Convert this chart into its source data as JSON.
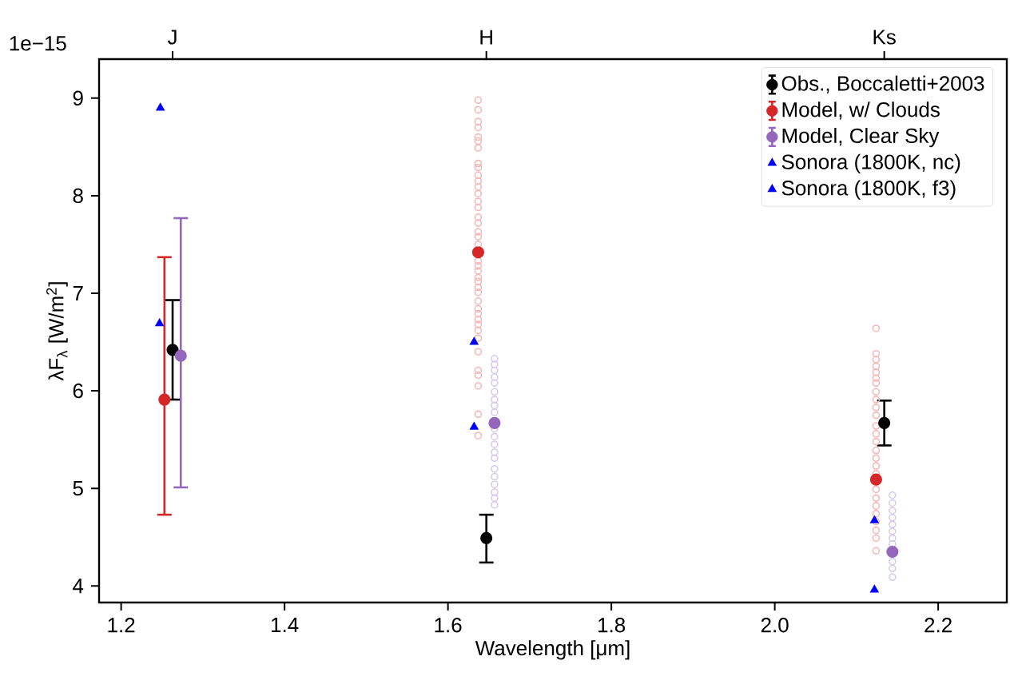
{
  "chart_data": {
    "type": "scatter",
    "xlabel": "Wavelength [μm]",
    "ylabel": "λF$_{λ}$ [W/m$^{2}$]",
    "annotations": [
      "1e−15",
      "J",
      "H",
      "Ks"
    ],
    "xlim": [
      1.173,
      2.284
    ],
    "ylim": [
      3.83,
      9.4
    ],
    "xticks": [
      {
        "value": 1.2,
        "label": "1.2"
      },
      {
        "value": 1.4,
        "label": "1.4"
      },
      {
        "value": 1.6,
        "label": "1.6"
      },
      {
        "value": 1.8,
        "label": "1.8"
      },
      {
        "value": 2.0,
        "label": "2.0"
      },
      {
        "value": 2.2,
        "label": "2.2"
      }
    ],
    "yticks": [
      4,
      5,
      6,
      7,
      8,
      9
    ],
    "legend": "top right",
    "grid": false,
    "marker": "circle",
    "series": [
      {
        "name": "Obs., Boccaletti+2003",
        "color": "#000000",
        "x": [
          1.263,
          1.647,
          2.134
        ],
        "values": [
          6.42,
          4.49,
          5.67
        ],
        "errors": [
          [
            5.91,
            6.93
          ],
          [
            4.24,
            4.73
          ],
          [
            5.44,
            5.9
          ]
        ]
      },
      {
        "name": "Model, w/ Clouds",
        "color": "#d62728",
        "x": [
          1.253,
          1.637,
          2.124
        ],
        "values": [
          5.91,
          7.42,
          5.09
        ],
        "errors": [
          [
            4.73,
            7.37
          ],
          null,
          null
        ]
      },
      {
        "name": "Model, Clear Sky",
        "color": "#9467bd",
        "x": [
          1.273,
          1.657,
          2.144
        ],
        "values": [
          6.36,
          5.67,
          4.35
        ],
        "errors": [
          [
            5.01,
            7.77
          ],
          null,
          null
        ]
      },
      {
        "name": "Sonora (1800K, nc)",
        "color": "#0000ff",
        "marker": "triangle",
        "x": [
          1.248,
          1.632,
          2.122
        ],
        "values": [
          8.9,
          6.5,
          3.96
        ]
      },
      {
        "name": "Sonora (1800K, f3)",
        "color": "#0000ff",
        "marker": "triangle",
        "x": [
          1.247,
          1.632,
          2.122
        ],
        "values": [
          6.69,
          5.63,
          4.67
        ]
      },
      {
        "color": "#f2b8b8",
        "x": [
          1.637,
          1.637,
          1.637,
          1.637,
          1.637,
          1.637,
          1.637,
          1.637,
          1.637,
          1.637,
          1.637,
          1.637,
          1.637,
          1.637,
          1.637,
          1.637,
          1.637,
          1.637,
          1.637,
          1.637,
          1.637,
          1.637,
          1.637,
          1.637,
          1.637,
          1.637,
          1.637,
          1.637,
          1.637,
          1.637,
          1.637,
          1.637,
          1.637,
          1.637,
          1.637,
          1.637,
          1.637,
          1.637,
          1.637,
          1.637,
          2.124,
          2.124,
          2.124,
          2.124,
          2.124,
          2.124,
          2.124,
          2.124,
          2.124,
          2.124,
          2.124,
          2.124,
          2.124,
          2.124,
          2.124,
          2.124,
          2.124,
          2.124,
          2.124,
          2.124,
          2.124,
          2.124,
          2.124,
          2.124,
          2.124,
          2.124
        ],
        "values": [
          8.98,
          8.88,
          8.76,
          8.7,
          8.6,
          8.56,
          8.49,
          8.33,
          8.29,
          8.21,
          8.15,
          8.09,
          8.02,
          7.94,
          7.88,
          7.78,
          7.72,
          7.63,
          7.58,
          7.5,
          7.33,
          7.28,
          7.23,
          7.16,
          7.12,
          7.06,
          7.01,
          6.92,
          6.84,
          6.79,
          6.73,
          6.68,
          6.62,
          6.54,
          6.4,
          6.21,
          6.16,
          6.05,
          5.76,
          5.54,
          6.64,
          6.38,
          6.32,
          6.25,
          6.19,
          6.13,
          6.08,
          5.99,
          5.91,
          5.83,
          5.75,
          5.64,
          5.56,
          5.48,
          5.39,
          5.31,
          5.23,
          5.15,
          4.99,
          4.9,
          4.82,
          4.74,
          4.66,
          4.57,
          4.49,
          4.36
        ]
      },
      {
        "color": "#d6cbe8",
        "x": [
          1.657,
          1.657,
          1.657,
          1.657,
          1.657,
          1.657,
          1.657,
          1.657,
          1.657,
          1.657,
          1.657,
          1.657,
          1.657,
          1.657,
          1.657,
          1.657,
          1.657,
          1.657,
          1.657,
          1.657,
          2.144,
          2.144,
          2.144,
          2.144,
          2.144,
          2.144,
          2.144,
          2.144,
          2.144,
          2.144,
          2.144
        ],
        "values": [
          6.33,
          6.27,
          6.21,
          6.14,
          6.08,
          5.99,
          5.91,
          5.85,
          5.78,
          5.61,
          5.53,
          5.45,
          5.37,
          5.31,
          5.2,
          5.12,
          5.04,
          4.96,
          4.9,
          4.83,
          4.93,
          4.85,
          4.77,
          4.7,
          4.63,
          4.56,
          4.49,
          4.43,
          4.25,
          4.18,
          4.09
        ]
      }
    ]
  }
}
